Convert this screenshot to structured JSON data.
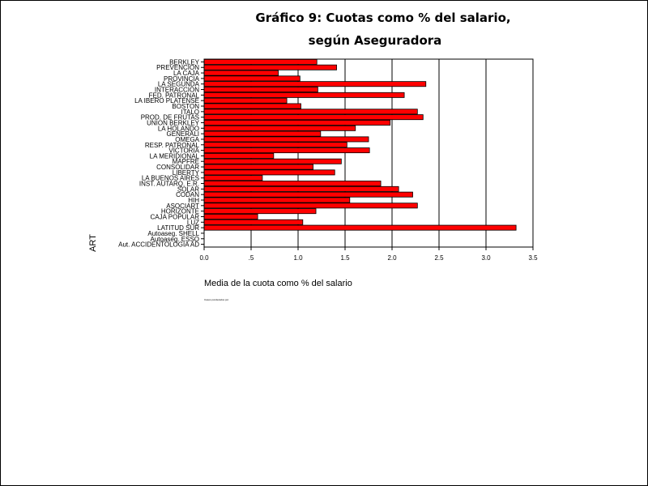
{
  "chart_data": {
    "type": "bar",
    "orientation": "horizontal",
    "title_line1": "Gráfico 9: Cuotas como % del salario,",
    "title_line2": "según Aseguradora",
    "xlabel": "Media de la cuota como % del salario",
    "ylabel": "ART",
    "xlim": [
      0,
      3.5
    ],
    "xticks": [
      "0.0",
      ".5",
      "1.0",
      "1.5",
      "2.0",
      "2.5",
      "3.0",
      "3.5"
    ],
    "xtick_values": [
      0,
      0.5,
      1.0,
      1.5,
      2.0,
      2.5,
      3.0,
      3.5
    ],
    "grid": true,
    "bar_color": "#ff0000",
    "footnote": "Casos ponderados por",
    "categories": [
      "BERKLEY",
      "PREVENCION",
      "LA CAJA",
      "PROVINCIA",
      "LA SEGUNDA",
      "INTERACCION",
      "FED. PATRONAL",
      "LA IBERO PLATENSE",
      "BOSTON",
      "ITALO",
      "PROD. DE FRUTAS",
      "UNION BERKLEY",
      "LA HOLANDO",
      "GENERALI",
      "OMEGA",
      "RESP. PATRONAL",
      "VICTORIA",
      "LA MERIDIONAL",
      "MAPFRE",
      "CONSOLIDAR",
      "LIBERTY",
      "LA BUENOS AIRES",
      "INST. AUTARQ. E.R.",
      "SOLAR",
      "CODAN",
      "HIH",
      "ASOCIART",
      "HORIZONTE",
      "CAJA POPULAR",
      "LUZ",
      "LATITUD SUR",
      "Autoaseg. SHELL",
      "Autoaseg. ESSO",
      "Aut. ACCIDENTOLOGIA AD"
    ],
    "values": [
      1.2,
      1.41,
      0.79,
      1.02,
      2.36,
      1.21,
      2.13,
      0.88,
      1.03,
      2.27,
      2.33,
      1.98,
      1.61,
      1.24,
      1.75,
      1.52,
      1.76,
      0.74,
      1.46,
      1.16,
      1.39,
      0.62,
      1.88,
      2.07,
      2.22,
      1.55,
      2.27,
      1.19,
      0.57,
      1.05,
      3.32,
      0,
      0,
      0
    ]
  }
}
